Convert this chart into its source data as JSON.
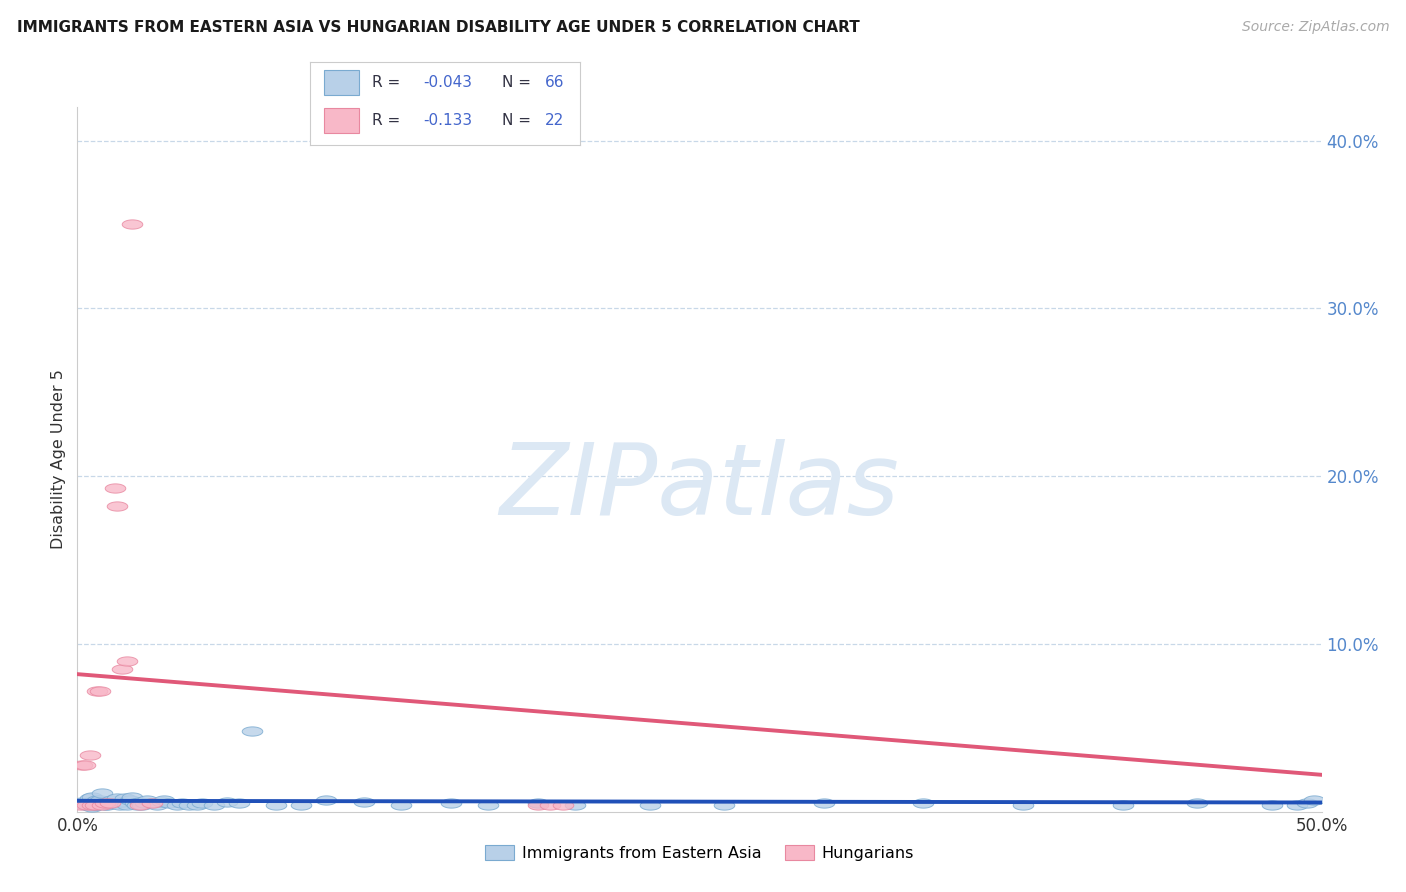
{
  "title": "IMMIGRANTS FROM EASTERN ASIA VS HUNGARIAN DISABILITY AGE UNDER 5 CORRELATION CHART",
  "source": "Source: ZipAtlas.com",
  "ylabel": "Disability Age Under 5",
  "legend_label1": "Immigrants from Eastern Asia",
  "legend_label2": "Hungarians",
  "xlim": [
    0.0,
    0.5
  ],
  "ylim": [
    0.0,
    0.42
  ],
  "ytick_vals": [
    0.1,
    0.2,
    0.3,
    0.4
  ],
  "ytick_labels": [
    "10.0%",
    "20.0%",
    "30.0%",
    "40.0%"
  ],
  "color_blue_fill": "#b8d0e8",
  "color_blue_edge": "#7aaad0",
  "color_blue_line": "#2050b8",
  "color_pink_fill": "#f8b8c8",
  "color_pink_edge": "#e888a0",
  "color_pink_line": "#e05878",
  "background_color": "#ffffff",
  "grid_color": "#c8d8e8",
  "watermark_color": "#dce8f4",
  "legend_text_color": "#3355aa",
  "legend_r_color": "#3355aa",
  "legend_n_color": "#3355aa",
  "blue_x": [
    0.002,
    0.003,
    0.004,
    0.005,
    0.005,
    0.006,
    0.006,
    0.007,
    0.007,
    0.008,
    0.008,
    0.009,
    0.01,
    0.01,
    0.011,
    0.012,
    0.013,
    0.014,
    0.015,
    0.016,
    0.017,
    0.018,
    0.019,
    0.02,
    0.021,
    0.022,
    0.023,
    0.024,
    0.025,
    0.026,
    0.027,
    0.028,
    0.03,
    0.032,
    0.034,
    0.035,
    0.037,
    0.04,
    0.042,
    0.045,
    0.048,
    0.05,
    0.055,
    0.06,
    0.065,
    0.07,
    0.08,
    0.09,
    0.1,
    0.115,
    0.13,
    0.15,
    0.165,
    0.185,
    0.2,
    0.23,
    0.26,
    0.3,
    0.34,
    0.38,
    0.42,
    0.45,
    0.48,
    0.49,
    0.494,
    0.497
  ],
  "blue_y": [
    0.006,
    0.004,
    0.005,
    0.008,
    0.006,
    0.003,
    0.009,
    0.006,
    0.004,
    0.007,
    0.004,
    0.007,
    0.005,
    0.011,
    0.004,
    0.004,
    0.006,
    0.007,
    0.005,
    0.008,
    0.004,
    0.006,
    0.008,
    0.004,
    0.007,
    0.009,
    0.005,
    0.004,
    0.006,
    0.004,
    0.005,
    0.007,
    0.005,
    0.004,
    0.006,
    0.007,
    0.005,
    0.004,
    0.005,
    0.004,
    0.004,
    0.005,
    0.004,
    0.006,
    0.005,
    0.048,
    0.004,
    0.004,
    0.007,
    0.006,
    0.004,
    0.005,
    0.004,
    0.005,
    0.004,
    0.004,
    0.004,
    0.005,
    0.005,
    0.004,
    0.004,
    0.005,
    0.004,
    0.004,
    0.005,
    0.007
  ],
  "pink_x": [
    0.001,
    0.002,
    0.003,
    0.004,
    0.005,
    0.006,
    0.007,
    0.008,
    0.009,
    0.01,
    0.011,
    0.013,
    0.015,
    0.016,
    0.018,
    0.02,
    0.022,
    0.025,
    0.03,
    0.185,
    0.19,
    0.195
  ],
  "pink_y": [
    0.004,
    0.028,
    0.028,
    0.004,
    0.034,
    0.004,
    0.004,
    0.072,
    0.072,
    0.004,
    0.005,
    0.005,
    0.193,
    0.182,
    0.085,
    0.09,
    0.35,
    0.004,
    0.005,
    0.004,
    0.004,
    0.004
  ],
  "blue_trendline_x": [
    0.0,
    0.5
  ],
  "blue_trendline_y": [
    0.0065,
    0.0055
  ],
  "pink_trendline_x": [
    0.0,
    0.5
  ],
  "pink_trendline_y": [
    0.082,
    0.022
  ]
}
